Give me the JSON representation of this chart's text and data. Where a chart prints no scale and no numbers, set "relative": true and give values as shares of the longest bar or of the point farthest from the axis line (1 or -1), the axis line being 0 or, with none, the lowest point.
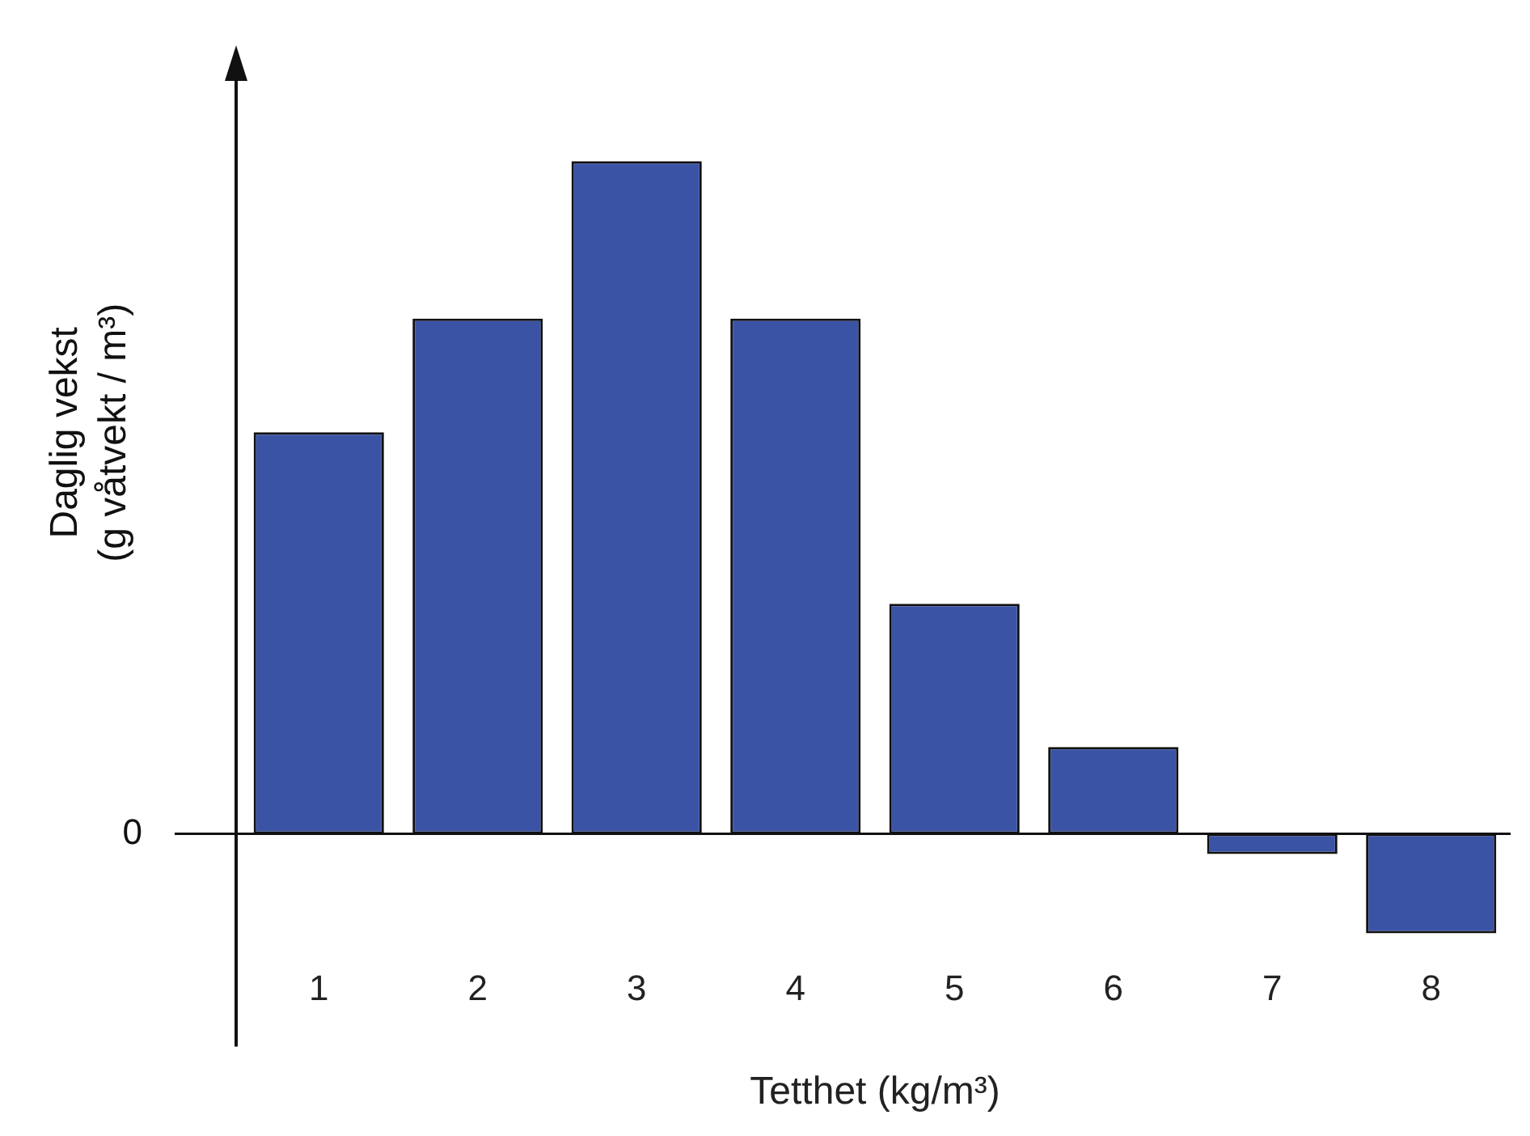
{
  "chart_data": {
    "type": "bar",
    "relative": true,
    "categories": [
      "1",
      "2",
      "3",
      "4",
      "5",
      "6",
      "7",
      "8"
    ],
    "values": [
      0.597,
      0.766,
      1,
      0.766,
      0.342,
      0.129,
      -0.03,
      -0.148
    ],
    "color": "#3b53a4",
    "xlabel": "Tetthet (kg/m³)",
    "ylabel": "Daglig vekst\n(g våtvekt / m³)",
    "ref_lines": [
      {
        "axis": "y",
        "value": 0,
        "label": "0"
      }
    ],
    "grid": false,
    "legend": false
  }
}
